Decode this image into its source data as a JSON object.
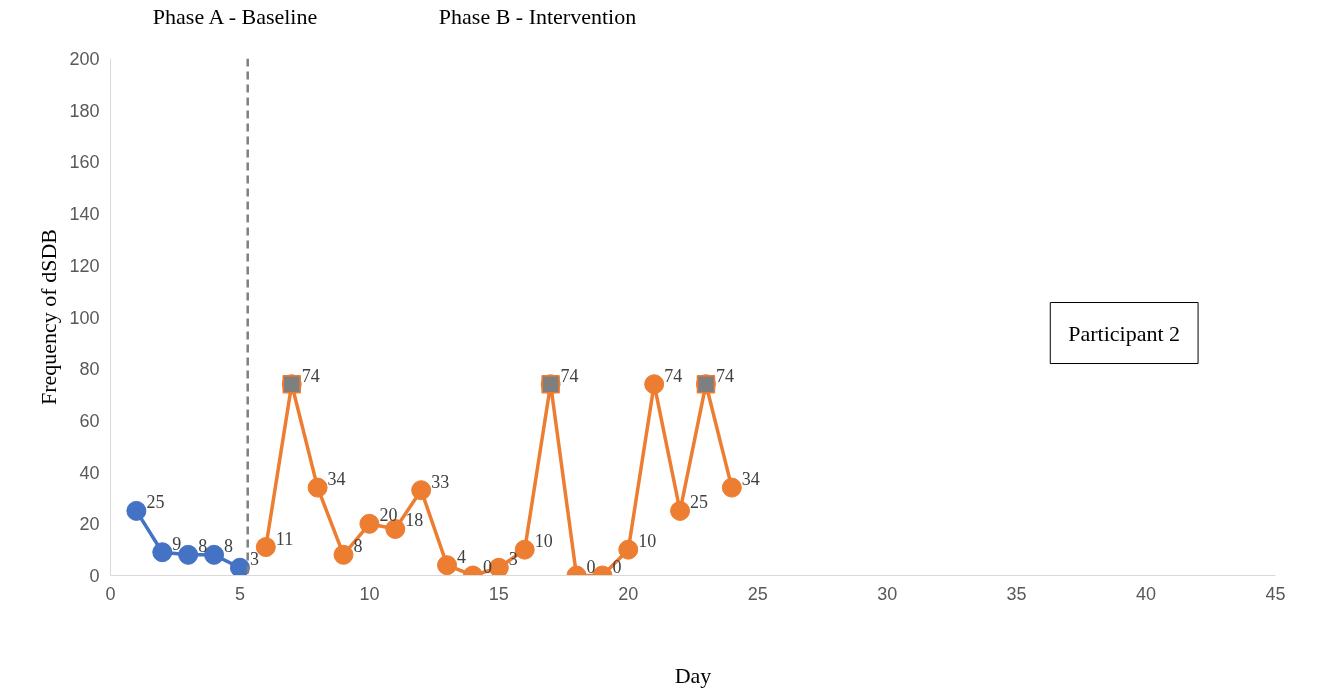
{
  "chart_data": {
    "type": "line",
    "xlabel": "Day",
    "ylabel": "Frequency of dSDB",
    "xlim": [
      0,
      45
    ],
    "xticks": [
      0,
      5,
      10,
      15,
      20,
      25,
      30,
      35,
      40,
      45
    ],
    "ylim": [
      0,
      200
    ],
    "yticks": [
      0,
      20,
      40,
      60,
      80,
      100,
      120,
      140,
      160,
      180,
      200
    ],
    "grid": false,
    "marker": "circle",
    "line_style": "solid",
    "series": [
      {
        "color": "#4472c4",
        "x": [
          1,
          2,
          3,
          4,
          5
        ],
        "values": [
          25,
          9,
          8,
          8,
          3
        ],
        "value_labels": [
          "25",
          "9",
          "8",
          "8",
          "3"
        ]
      },
      {
        "color": "#ed7d31",
        "x": [
          6,
          7,
          8,
          9,
          10,
          11,
          12,
          13,
          14,
          15,
          16,
          17,
          18,
          19,
          20,
          21,
          22,
          23,
          24
        ],
        "values": [
          11,
          74,
          34,
          8,
          20,
          18,
          33,
          4,
          0,
          3,
          10,
          74,
          0,
          0,
          10,
          74,
          25,
          74,
          34
        ],
        "value_labels": [
          "11",
          "74",
          "34",
          "8",
          "20",
          "18",
          "33",
          "4",
          "0",
          "3",
          "10",
          "74",
          "0",
          "0",
          "10",
          "74",
          "25",
          "74",
          "34"
        ]
      },
      {
        "type": "scatter",
        "marker": "square",
        "color": "#7f7f7f",
        "x": [
          7,
          17,
          23
        ],
        "values": [
          74,
          74,
          74
        ]
      }
    ],
    "ref_lines": [
      {
        "axis": "x",
        "value": 5.3,
        "color": "#7f7f7f",
        "line_style": "dashed"
      }
    ],
    "annotations": [
      "Phase A - Baseline",
      "Phase B - Intervention",
      "Participant 2"
    ]
  }
}
